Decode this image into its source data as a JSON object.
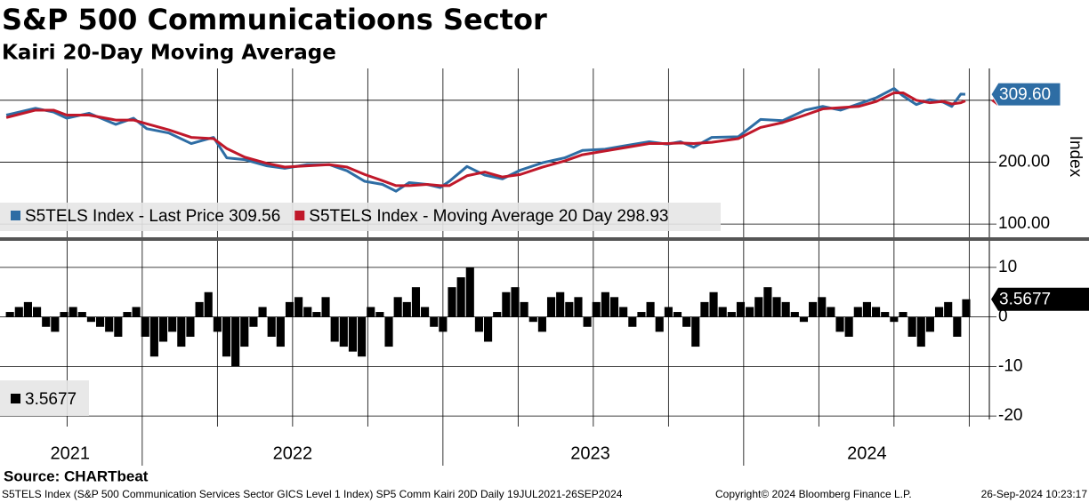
{
  "chart_data": [
    {
      "type": "line",
      "title": "S&P 500 Communicatioons Sector",
      "subtitle": "Kairi 20-Day Moving Average",
      "y_axis_label": "Index",
      "x": [
        2021.548,
        2021.645,
        2021.705,
        2021.749,
        2021.823,
        2021.912,
        2021.971,
        2022.015,
        2022.089,
        2022.163,
        2022.237,
        2022.281,
        2022.341,
        2022.415,
        2022.474,
        2022.548,
        2022.622,
        2022.681,
        2022.74,
        2022.799,
        2022.844,
        2022.888,
        2022.947,
        2022.991,
        2023.021,
        2023.08,
        2023.139,
        2023.198,
        2023.257,
        2023.331,
        2023.405,
        2023.464,
        2023.539,
        2023.612,
        2023.686,
        2023.746,
        2023.79,
        2023.834,
        2023.894,
        2023.982,
        2024.056,
        2024.13,
        2024.204,
        2024.263,
        2024.322,
        2024.382,
        2024.441,
        2024.5,
        2024.53,
        2024.574,
        2024.618,
        2024.663,
        2024.692,
        2024.722,
        2024.737
      ],
      "series": [
        {
          "name": "S5TELS Index - Last Price 309.56",
          "color": "#2e6da4",
          "values": [
            276,
            287,
            281,
            271,
            279,
            261,
            271,
            254,
            247,
            230,
            240,
            207,
            204,
            194,
            190,
            196,
            196,
            186,
            169,
            164,
            153,
            167,
            164,
            159,
            169,
            193,
            179,
            173,
            187,
            199,
            207,
            219,
            221,
            227,
            233,
            229,
            233,
            224,
            240,
            241,
            269,
            267,
            284,
            290,
            284,
            294,
            304,
            319,
            307,
            293,
            301,
            297,
            290,
            310,
            309.56
          ]
        },
        {
          "name": "S5TELS Index - Moving Average 20 Day 298.93",
          "color": "#c0182a",
          "values": [
            272,
            284,
            284,
            276,
            276,
            268,
            268,
            262,
            252,
            240,
            238,
            222,
            208,
            198,
            192,
            194,
            196,
            192,
            180,
            170,
            162,
            162,
            164,
            162,
            162,
            178,
            184,
            176,
            180,
            192,
            202,
            212,
            218,
            224,
            230,
            230,
            231,
            230,
            232,
            238,
            256,
            264,
            276,
            286,
            288,
            290,
            298,
            312,
            312,
            300,
            296,
            298,
            294,
            296,
            298.93
          ]
        }
      ],
      "last_value_label": "309.60",
      "xlim": [
        2021.527,
        2024.817
      ],
      "xgrid": [
        2021.75,
        2022,
        2022.25,
        2022.5,
        2022.75,
        2023,
        2023.25,
        2023.5,
        2023.75,
        2024,
        2024.25,
        2024.5,
        2024.75
      ],
      "xticks": [
        {
          "value": 2021.76,
          "label": "2021"
        },
        {
          "value": 2022.5,
          "label": "2022"
        },
        {
          "value": 2023.49,
          "label": "2023"
        },
        {
          "value": 2024.41,
          "label": "2024"
        }
      ],
      "ylim": [
        78.6,
        351.4
      ],
      "ygrid": [
        100,
        200,
        300
      ],
      "yticks": [
        {
          "value": 100,
          "label": "100.00"
        },
        {
          "value": 200,
          "label": "200.00"
        }
      ]
    },
    {
      "type": "bar",
      "color": "#000000",
      "x": [
        2021.56,
        2021.59,
        2021.62,
        2021.65,
        2021.68,
        2021.71,
        2021.74,
        2021.77,
        2021.8,
        2021.83,
        2021.86,
        2021.89,
        2021.92,
        2021.95,
        2021.98,
        2022.01,
        2022.04,
        2022.07,
        2022.1,
        2022.13,
        2022.16,
        2022.19,
        2022.22,
        2022.25,
        2022.28,
        2022.31,
        2022.34,
        2022.37,
        2022.4,
        2022.43,
        2022.46,
        2022.49,
        2022.52,
        2022.55,
        2022.58,
        2022.61,
        2022.64,
        2022.67,
        2022.7,
        2022.73,
        2022.76,
        2022.79,
        2022.82,
        2022.85,
        2022.88,
        2022.91,
        2022.94,
        2022.97,
        2023.0,
        2023.03,
        2023.06,
        2023.09,
        2023.12,
        2023.15,
        2023.18,
        2023.21,
        2023.24,
        2023.27,
        2023.3,
        2023.33,
        2023.36,
        2023.39,
        2023.42,
        2023.45,
        2023.48,
        2023.51,
        2023.54,
        2023.57,
        2023.6,
        2023.63,
        2023.66,
        2023.69,
        2023.72,
        2023.75,
        2023.78,
        2023.81,
        2023.84,
        2023.87,
        2023.9,
        2023.93,
        2023.96,
        2023.99,
        2024.02,
        2024.05,
        2024.08,
        2024.11,
        2024.14,
        2024.17,
        2024.2,
        2024.23,
        2024.26,
        2024.29,
        2024.32,
        2024.35,
        2024.38,
        2024.41,
        2024.44,
        2024.47,
        2024.5,
        2024.53,
        2024.56,
        2024.59,
        2024.62,
        2024.65,
        2024.68,
        2024.71,
        2024.74
      ],
      "values": [
        1,
        2,
        3,
        2,
        -2,
        -3,
        1,
        2,
        1,
        -1,
        -2,
        -3,
        -4,
        1,
        2,
        -4,
        -8,
        -5,
        -3,
        -6,
        -4,
        3,
        5,
        -3,
        -8,
        -10,
        -6,
        -2,
        2,
        -4,
        -6,
        3,
        4,
        2,
        1,
        4,
        -5,
        -6,
        -7,
        -8,
        2,
        1,
        -6,
        4,
        3,
        6,
        2,
        -2,
        -3,
        6,
        8,
        10,
        -3,
        -5,
        1,
        5,
        6,
        3,
        -1,
        -3,
        4,
        5,
        3,
        4,
        -2,
        3,
        5,
        4,
        2,
        -2,
        1,
        3,
        -3,
        2,
        1,
        -2,
        -6,
        3,
        5,
        2,
        1,
        3,
        2,
        4,
        6,
        4,
        3,
        1,
        -1,
        3,
        4,
        2,
        -3,
        -4,
        2,
        3,
        2,
        1,
        -1,
        1,
        -4,
        -6,
        -3,
        2,
        3,
        -4,
        3.5677
      ],
      "xlim": [
        2021.527,
        2024.817
      ],
      "ylim": [
        -20.7,
        15.36
      ],
      "yticks": [
        10,
        0,
        -10,
        -20
      ],
      "source": "Source: CHARTbeat",
      "footer_left": "S5TELS Index (S&P 500 Communication Services Sector GICS Level 1 Index) SP5 Comm Kairi 20D  Daily 19JUL2021-26SEP2024",
      "footer_center": "Copyright© 2024 Bloomberg Finance L.P.",
      "footer_right": "26-Sep-2024 10:23:17"
    }
  ]
}
